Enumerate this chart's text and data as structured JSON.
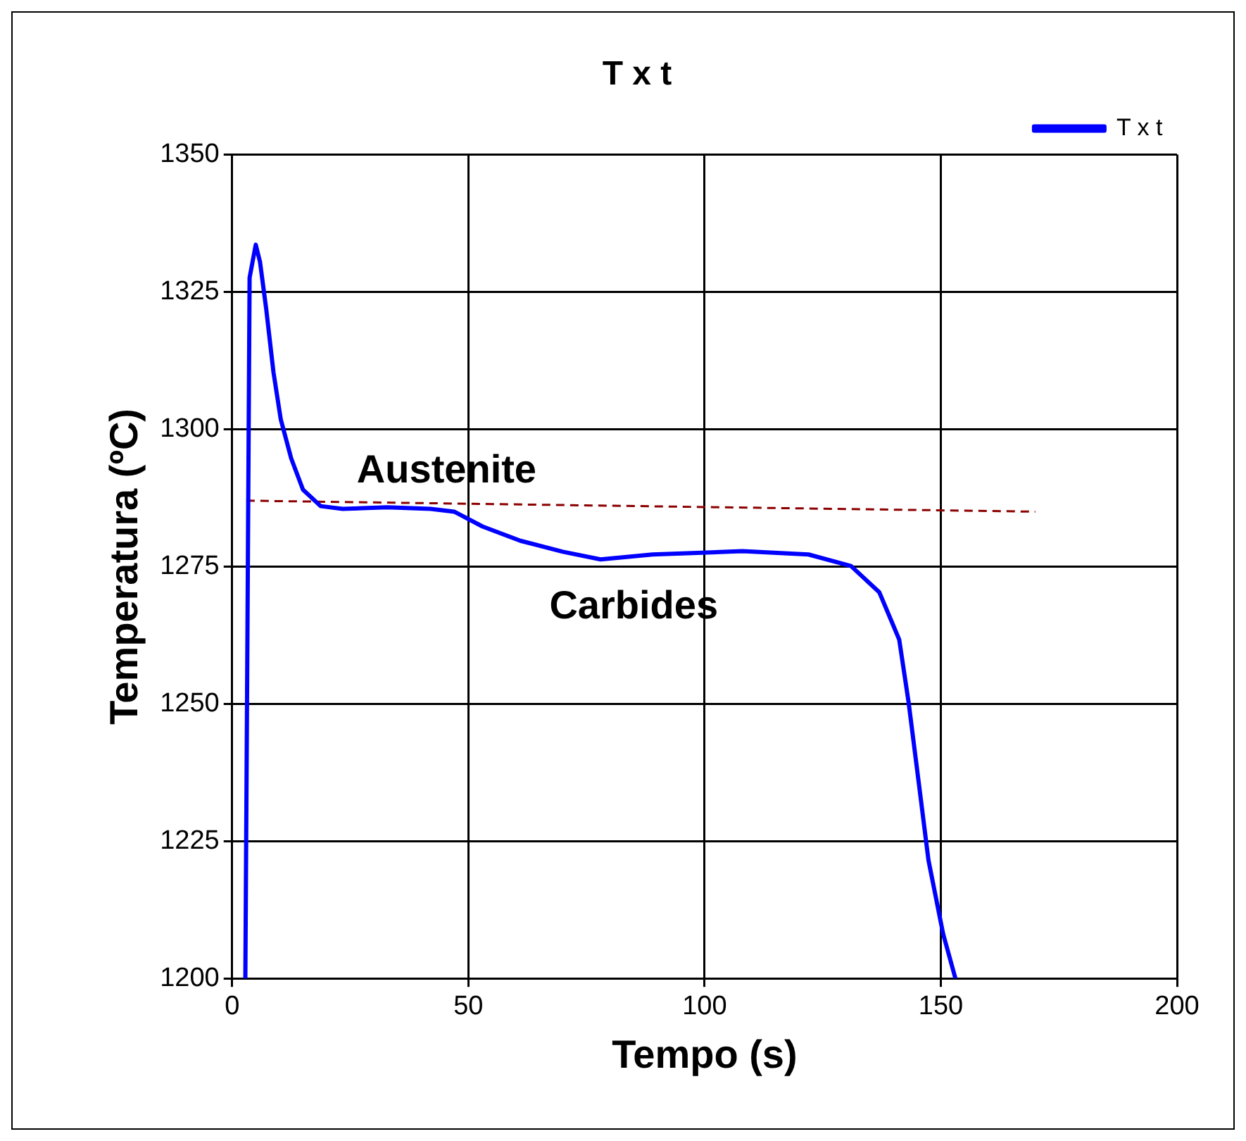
{
  "chart_data": {
    "type": "line",
    "title": "T x t",
    "xlabel": "Tempo (s)",
    "ylabel": "Temperatura (ºC)",
    "xlim": [
      0,
      200
    ],
    "xticks": [
      0,
      50,
      100,
      150,
      200
    ],
    "ylim": [
      1200,
      1350
    ],
    "yticks": [
      1200,
      1225,
      1250,
      1275,
      1300,
      1325,
      1350
    ],
    "grid": true,
    "legend": "top right",
    "marker": "none",
    "annotations": [
      "Austenite",
      "Carbides"
    ],
    "series": [
      {
        "name": "T x t",
        "color": "#0000ff",
        "line_style": "solid",
        "x": [
          2.8,
          3.7,
          5,
          5.9,
          7.2,
          8.75,
          10.3,
          12.5,
          15,
          18.75,
          23.4,
          32.8,
          42,
          47,
          53,
          61,
          70,
          78,
          89,
          108,
          122,
          131,
          137,
          141.2,
          143.2,
          145.3,
          147.4,
          150.5,
          153.1
        ],
        "values": [
          1200,
          1327.6,
          1333.6,
          1330.5,
          1322,
          1310.4,
          1301.8,
          1294.7,
          1289,
          1286,
          1285.5,
          1285.8,
          1285.5,
          1285,
          1282.3,
          1279.7,
          1277.7,
          1276.3,
          1277.2,
          1277.8,
          1277.2,
          1275.1,
          1270.3,
          1261.7,
          1250.2,
          1235.9,
          1221.5,
          1208.1,
          1200
        ]
      },
      {
        "type": "line",
        "color": "#8b0000",
        "line_style": "dashed",
        "x": [
          3,
          170
        ],
        "values": [
          1287,
          1285
        ]
      }
    ]
  }
}
